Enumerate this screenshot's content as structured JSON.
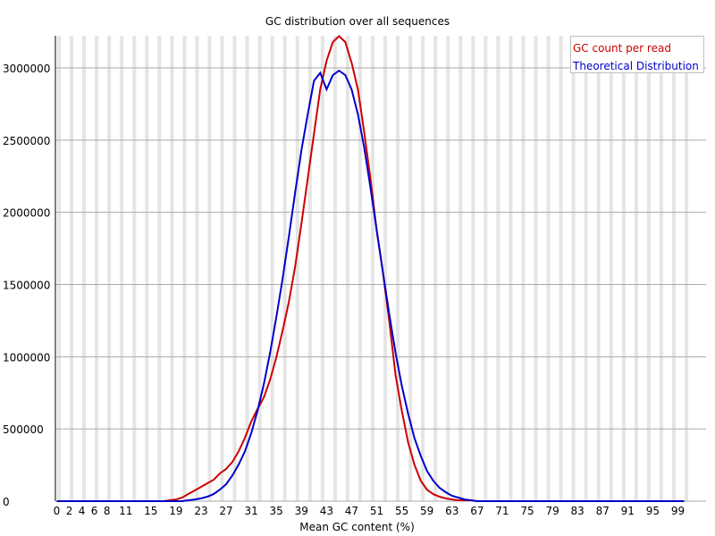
{
  "chart_data": {
    "type": "line",
    "title": "GC distribution over all sequences",
    "xlabel": "Mean GC content (%)",
    "ylabel": "",
    "ylim": [
      0,
      3220000
    ],
    "xlim": [
      0,
      100
    ],
    "yticks": [
      0,
      500000,
      1000000,
      1500000,
      2000000,
      2500000,
      3000000
    ],
    "ytick_labels": [
      "0",
      "500000",
      "1000000",
      "1500000",
      "2000000",
      "2500000",
      "3000000"
    ],
    "xtick_labels": [
      "0",
      "2",
      "4",
      "6",
      "8",
      "11",
      "15",
      "19",
      "23",
      "27",
      "31",
      "35",
      "39",
      "43",
      "47",
      "51",
      "55",
      "59",
      "63",
      "67",
      "71",
      "75",
      "79",
      "83",
      "87",
      "91",
      "95",
      "99"
    ],
    "xtick_positions": [
      0,
      2,
      4,
      6,
      8,
      11,
      15,
      19,
      23,
      27,
      31,
      35,
      39,
      43,
      47,
      51,
      55,
      59,
      63,
      67,
      71,
      75,
      79,
      83,
      87,
      91,
      95,
      99
    ],
    "grid": {
      "horizontal": true,
      "vertical_stripes": true
    },
    "legend_position": "top-right",
    "x": [
      0,
      1,
      2,
      3,
      4,
      5,
      6,
      7,
      8,
      9,
      10,
      11,
      12,
      13,
      14,
      15,
      16,
      17,
      18,
      19,
      20,
      21,
      22,
      23,
      24,
      25,
      26,
      27,
      28,
      29,
      30,
      31,
      32,
      33,
      34,
      35,
      36,
      37,
      38,
      39,
      40,
      41,
      42,
      43,
      44,
      45,
      46,
      47,
      48,
      49,
      50,
      51,
      52,
      53,
      54,
      55,
      56,
      57,
      58,
      59,
      60,
      61,
      62,
      63,
      64,
      65,
      66,
      67,
      68,
      69,
      70,
      71,
      72,
      73,
      74,
      75,
      76,
      77,
      78,
      79,
      80,
      81,
      82,
      83,
      84,
      85,
      86,
      87,
      88,
      89,
      90,
      91,
      92,
      93,
      94,
      95,
      96,
      97,
      98,
      99,
      100
    ],
    "series": [
      {
        "name": "GC count per read",
        "color": "#cc0000",
        "values": [
          0,
          0,
          0,
          0,
          0,
          0,
          0,
          0,
          0,
          0,
          0,
          0,
          0,
          0,
          0,
          0,
          0,
          0,
          6000,
          12000,
          25000,
          50000,
          74000,
          99000,
          124000,
          148000,
          192000,
          223000,
          272000,
          346000,
          439000,
          551000,
          637000,
          718000,
          841000,
          996000,
          1181000,
          1379000,
          1627000,
          1924000,
          2233000,
          2542000,
          2851000,
          3049000,
          3179000,
          3220000,
          3179000,
          3036000,
          2851000,
          2555000,
          2233000,
          1874000,
          1583000,
          1243000,
          872000,
          625000,
          408000,
          254000,
          142000,
          80000,
          49000,
          31000,
          19000,
          12000,
          6000,
          6000,
          6000,
          0,
          0,
          0,
          0,
          0,
          0,
          0,
          0,
          0,
          0,
          0,
          0,
          0,
          0,
          0,
          0,
          0,
          0,
          0,
          0,
          0,
          0,
          0,
          0,
          0,
          0,
          0,
          0,
          0,
          0,
          0,
          0,
          0,
          0
        ]
      },
      {
        "name": "Theoretical Distribution",
        "color": "#0000cc",
        "values": [
          0,
          0,
          0,
          0,
          0,
          0,
          0,
          0,
          0,
          0,
          0,
          0,
          0,
          0,
          0,
          0,
          0,
          0,
          0,
          0,
          0,
          6000,
          12000,
          19000,
          31000,
          49000,
          80000,
          117000,
          179000,
          254000,
          346000,
          470000,
          625000,
          810000,
          1027000,
          1274000,
          1540000,
          1831000,
          2140000,
          2431000,
          2678000,
          2910000,
          2966000,
          2851000,
          2950000,
          2981000,
          2950000,
          2851000,
          2678000,
          2449000,
          2171000,
          1874000,
          1583000,
          1292000,
          1027000,
          798000,
          606000,
          439000,
          315000,
          210000,
          142000,
          93000,
          62000,
          37000,
          25000,
          12000,
          6000,
          0,
          0,
          0,
          0,
          0,
          0,
          0,
          0,
          0,
          0,
          0,
          0,
          0,
          0,
          0,
          0,
          0,
          0,
          0,
          0,
          0,
          0,
          0,
          0,
          0,
          0,
          0,
          0,
          0,
          0,
          0,
          0,
          0,
          0
        ]
      }
    ]
  },
  "legend": {
    "items": [
      {
        "label": "GC count per read",
        "color": "#cc0000"
      },
      {
        "label": "Theoretical Distribution",
        "color": "#0000cc"
      }
    ]
  }
}
